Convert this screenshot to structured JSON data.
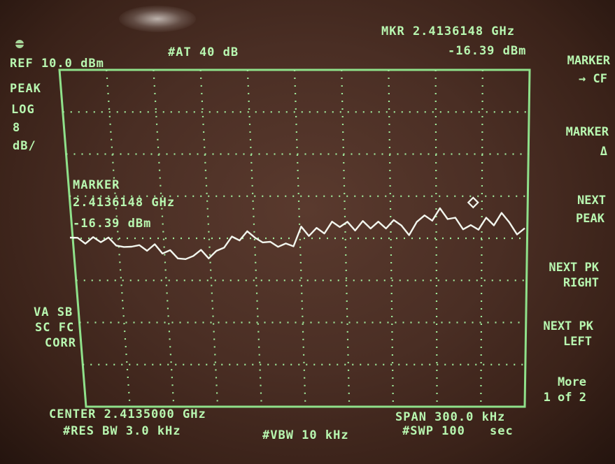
{
  "header": {
    "ref_level": "REF 10.0 dBm",
    "attenuation": "#AT 40 dB",
    "marker_freq": "MKR 2.4136148 GHz",
    "marker_ampl": "-16.39 dBm"
  },
  "scale": {
    "mode": "PEAK",
    "type": "LOG",
    "value": "8",
    "unit": "dB/"
  },
  "marker_readout": {
    "title": "MARKER",
    "freq": "2.4136148 GHz",
    "ampl": "-16.39 dBm"
  },
  "left_annotations": [
    "VA SB",
    "SC FC",
    "CORR"
  ],
  "softkeys": [
    {
      "line1": "MARKER",
      "line2": "→ CF"
    },
    {
      "line1": "MARKER",
      "line2": "Δ"
    },
    {
      "line1": "NEXT",
      "line2": "PEAK"
    },
    {
      "line1": "NEXT PK",
      "line2": "RIGHT"
    },
    {
      "line1": "NEXT PK",
      "line2": "LEFT"
    },
    {
      "line1": "More",
      "line2": "1 of 2"
    }
  ],
  "footer": {
    "center": "CENTER 2.4135000 GHz",
    "rbw": "#RES BW 3.0 kHz",
    "vbw": "#VBW 10 kHz",
    "span": "SPAN 300.0 kHz",
    "sweep": "#SWP 100",
    "sweep_unit": "sec"
  },
  "colors": {
    "phosphor": "#b8f7b0",
    "trace": "#f2f6ee",
    "bezel": "#4a2e24"
  },
  "trace_levels_divisions_from_top": [
    3.95,
    3.98,
    4.05,
    4.0,
    4.1,
    4.06,
    4.15,
    4.2,
    4.12,
    4.18,
    4.3,
    4.22,
    4.35,
    4.28,
    4.4,
    4.5,
    4.42,
    4.35,
    4.48,
    4.3,
    4.15,
    3.95,
    4.05,
    3.9,
    4.0,
    4.1,
    4.02,
    4.18,
    4.12,
    4.25,
    3.75,
    3.95,
    3.7,
    3.85,
    3.6,
    3.78,
    3.65,
    3.82,
    3.55,
    3.72,
    3.6,
    3.8,
    3.62,
    3.7,
    3.9,
    3.55,
    3.45,
    3.6,
    3.35,
    3.55,
    3.5,
    3.72,
    3.68,
    3.8,
    3.58,
    3.7,
    3.4,
    3.55,
    3.9,
    3.75
  ],
  "marker_position": {
    "division_x": 8.65,
    "division_y": 3.15
  }
}
